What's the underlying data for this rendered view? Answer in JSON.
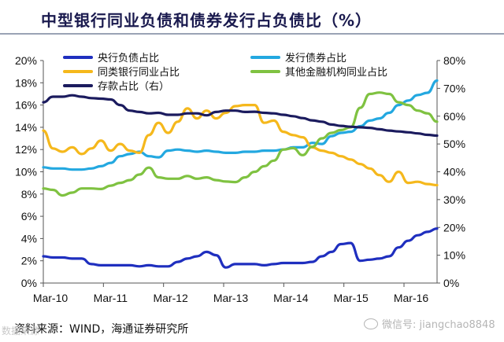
{
  "title": "中型银行同业负债和债券发行占负债比（%）",
  "source": "资料来源：WIND，海通证券研究所",
  "watermark": "微信号: jiangchao8848",
  "corner_mark": "数据来源",
  "chart_data": {
    "type": "line",
    "left_axis": {
      "ticks": [
        "0%",
        "2%",
        "4%",
        "6%",
        "8%",
        "10%",
        "12%",
        "14%",
        "16%",
        "18%",
        "20%"
      ],
      "ylim": [
        0,
        20
      ]
    },
    "right_axis": {
      "ticks": [
        "0%",
        "10%",
        "20%",
        "30%",
        "40%",
        "50%",
        "60%",
        "70%",
        "80%"
      ],
      "ylim": [
        0,
        80
      ]
    },
    "x_ticks": [
      "Mar-10",
      "Mar-11",
      "Mar-12",
      "Mar-13",
      "Mar-14",
      "Mar-15",
      "Mar-16"
    ],
    "grid": false,
    "legend_position": "top",
    "series": [
      {
        "name": "央行负债占比",
        "color": "#1f2fbf",
        "axis": "left",
        "values": [
          2.4,
          2.3,
          2.3,
          2.2,
          2.2,
          1.7,
          1.6,
          1.6,
          1.6,
          1.6,
          1.5,
          1.6,
          1.5,
          1.5,
          1.9,
          2.2,
          2.4,
          2.8,
          2.5,
          1.4,
          1.7,
          1.7,
          1.7,
          1.6,
          1.7,
          1.8,
          1.8,
          1.8,
          1.9,
          2.4,
          2.8,
          3.5,
          3.6,
          2.0,
          2.1,
          2.2,
          2.4,
          3.2,
          3.8,
          4.3,
          4.6,
          4.9
        ]
      },
      {
        "name": "发行债券占比",
        "color": "#23a8e0",
        "axis": "left",
        "values": [
          10.4,
          10.3,
          10.3,
          10.2,
          10.2,
          10.3,
          10.5,
          10.8,
          11.4,
          11.6,
          11.8,
          11.4,
          11.3,
          11.9,
          12.0,
          11.9,
          11.8,
          11.9,
          11.8,
          11.7,
          11.7,
          11.8,
          11.8,
          11.9,
          11.9,
          12.0,
          12.2,
          12.2,
          12.6,
          12.5,
          13.2,
          13.5,
          13.6,
          14.1,
          14.6,
          14.8,
          15.3,
          16.0,
          16.4,
          16.9,
          17.1,
          18.2
        ]
      },
      {
        "name": "同类银行同业占比",
        "color": "#f5b81c",
        "axis": "left",
        "values": [
          13.7,
          12.1,
          11.8,
          12.2,
          11.6,
          12.1,
          12.8,
          11.9,
          12.5,
          11.9,
          11.7,
          13.3,
          14.4,
          13.5,
          14.5,
          15.7,
          14.8,
          15.5,
          14.8,
          15.3,
          15.9,
          16.0,
          16.0,
          14.4,
          14.6,
          13.6,
          13.3,
          13.1,
          12.2,
          11.9,
          11.7,
          11.4,
          11.1,
          10.7,
          10.3,
          9.7,
          9.1,
          10.0,
          9.0,
          9.1,
          8.9,
          8.8
        ]
      },
      {
        "name": "其他金融机构同业占比",
        "color": "#7fc241",
        "axis": "right",
        "values": [
          34,
          33.5,
          31.5,
          32.5,
          34,
          34,
          33.8,
          35,
          36,
          37,
          39,
          41.5,
          38,
          37.5,
          37.5,
          38.5,
          37.5,
          38,
          37,
          36.5,
          36.3,
          38,
          40,
          42,
          44,
          48,
          48.5,
          46,
          49,
          52,
          54,
          55,
          56,
          63,
          68,
          68.5,
          68,
          65,
          64,
          62,
          61,
          58
        ]
      },
      {
        "name": "存款占比（右）",
        "color": "#1b1b5e",
        "axis": "right",
        "values": [
          65,
          67,
          67,
          67.5,
          67,
          66.5,
          66.3,
          66,
          64,
          62,
          61.5,
          61,
          61.2,
          60.5,
          60.5,
          61,
          61,
          60.3,
          61.5,
          62,
          62,
          61.5,
          61.6,
          61.2,
          61,
          60.5,
          60,
          59.3,
          58.5,
          58,
          57,
          56.5,
          56.2,
          56,
          55.8,
          55.3,
          54.8,
          54.5,
          54.2,
          53.8,
          53.3,
          53
        ]
      }
    ]
  }
}
